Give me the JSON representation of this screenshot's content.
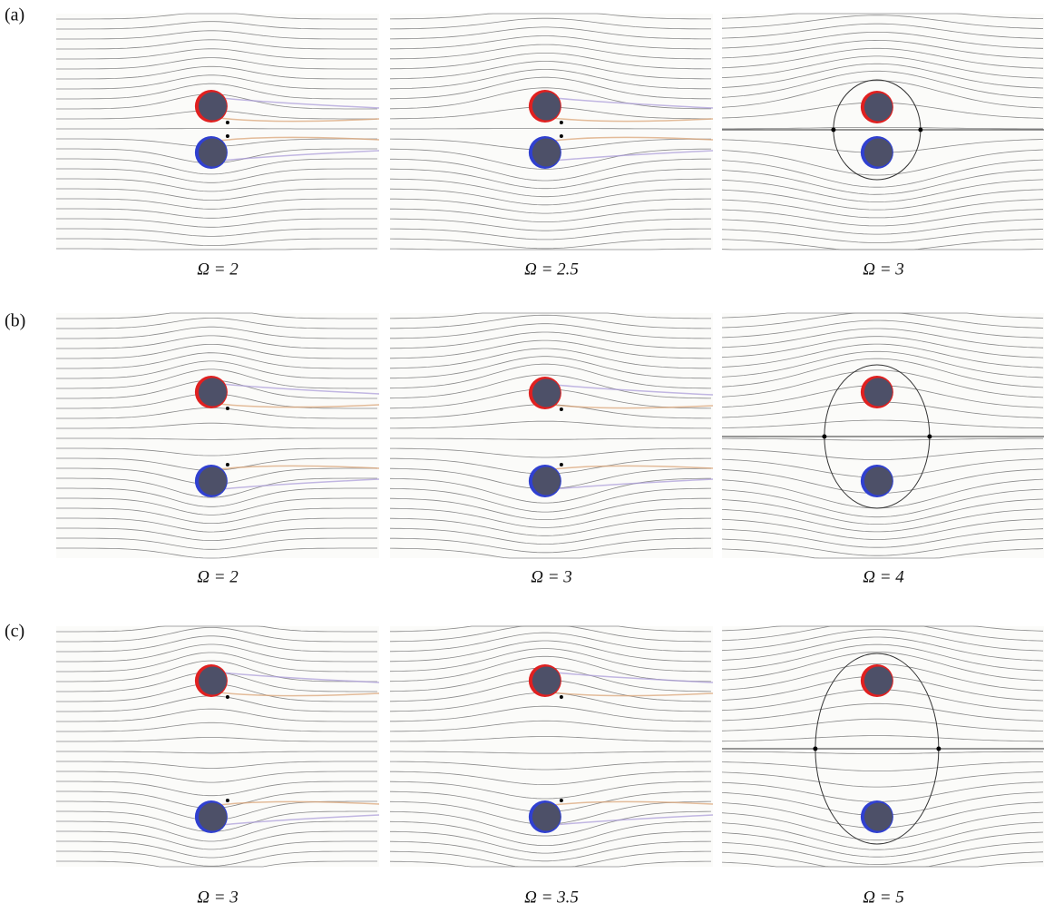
{
  "rows": [
    {
      "label": "(a)",
      "panels": [
        {
          "caption": "Ω = 2"
        },
        {
          "caption": "Ω = 2.5"
        },
        {
          "caption": "Ω = 3"
        }
      ]
    },
    {
      "label": "(b)",
      "panels": [
        {
          "caption": "Ω = 2"
        },
        {
          "caption": "Ω = 3"
        },
        {
          "caption": "Ω = 4"
        }
      ]
    },
    {
      "label": "(c)",
      "panels": [
        {
          "caption": "Ω = 3"
        },
        {
          "caption": "Ω = 3.5"
        },
        {
          "caption": "Ω = 5"
        }
      ]
    }
  ]
}
